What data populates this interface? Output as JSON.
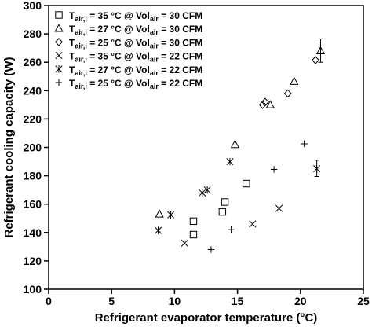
{
  "chart_data": {
    "type": "scatter",
    "xlabel": "Refrigerant evaporator temperature (°C)",
    "ylabel": "Refrigerant cooling capacity (W)",
    "xlim": [
      0,
      25
    ],
    "ylim": [
      100,
      300
    ],
    "xticks": [
      0,
      5,
      10,
      15,
      20,
      25
    ],
    "yticks": [
      100,
      120,
      140,
      160,
      180,
      200,
      220,
      240,
      260,
      280,
      300
    ],
    "grid": false,
    "legend_position": "top-left",
    "series": [
      {
        "name": "T_air,i = 35 °C @ Vol_air = 30 CFM",
        "legend": {
          "pre": "T",
          "sub1": "air,i",
          "mid": " = 35 °C @ Vol",
          "sub2": "air",
          "post": " = 30 CFM"
        },
        "marker": "square",
        "points": [
          [
            11.5,
            148
          ],
          [
            11.5,
            138.5
          ],
          [
            13.8,
            154.5
          ],
          [
            14.0,
            161.5
          ],
          [
            15.7,
            174.5
          ]
        ]
      },
      {
        "name": "T_air,i = 27 °C @ Vol_air = 30 CFM",
        "legend": {
          "pre": "T",
          "sub1": "air,i",
          "mid": " = 27 °C @ Vol",
          "sub2": "air",
          "post": " = 30 CFM"
        },
        "marker": "triangle",
        "points": [
          [
            8.8,
            153
          ],
          [
            14.8,
            202
          ],
          [
            17.6,
            230
          ],
          [
            19.5,
            246.5
          ],
          [
            21.6,
            268
          ]
        ],
        "error_bars": [
          {
            "x": 21.6,
            "low": 260,
            "high": 276.5
          }
        ]
      },
      {
        "name": "T_air,i = 25 °C @ Vol_air = 30 CFM",
        "legend": {
          "pre": "T",
          "sub1": "air,i",
          "mid": " = 25 °C @ Vol",
          "sub2": "air",
          "post": " = 30 CFM"
        },
        "marker": "diamond",
        "points": [
          [
            17.0,
            230
          ],
          [
            17.2,
            232
          ],
          [
            19.0,
            238
          ],
          [
            21.2,
            261.5
          ]
        ]
      },
      {
        "name": "T_air,i = 35 °C @ Vol_air = 22 CFM",
        "legend": {
          "pre": "T",
          "sub1": "air,i",
          "mid": " = 35 °C @ Vol",
          "sub2": "air",
          "post": " = 22 CFM"
        },
        "marker": "x",
        "points": [
          [
            10.8,
            132.5
          ],
          [
            16.2,
            146
          ],
          [
            18.3,
            157
          ]
        ]
      },
      {
        "name": "T_air,i = 27 °C @ Vol_air = 22 CFM",
        "legend": {
          "pre": "T",
          "sub1": "air,i",
          "mid": " = 27 °C @ Vol",
          "sub2": "air",
          "post": " = 22 CFM"
        },
        "marker": "asterisk",
        "points": [
          [
            8.7,
            141.5
          ],
          [
            9.7,
            152.5
          ],
          [
            12.2,
            168
          ],
          [
            12.6,
            170
          ],
          [
            14.4,
            190
          ],
          [
            21.3,
            185
          ]
        ],
        "error_bars": [
          {
            "x": 21.3,
            "low": 179.5,
            "high": 191
          }
        ]
      },
      {
        "name": "T_air,i = 25 °C @ Vol_air = 22 CFM",
        "legend": {
          "pre": "T",
          "sub1": "air,i",
          "mid": " = 25 °C @ Vol",
          "sub2": "air",
          "post": " = 22 CFM"
        },
        "marker": "plus",
        "points": [
          [
            12.9,
            128
          ],
          [
            14.5,
            142
          ],
          [
            17.9,
            184.5
          ],
          [
            20.3,
            202.5
          ]
        ]
      }
    ]
  }
}
